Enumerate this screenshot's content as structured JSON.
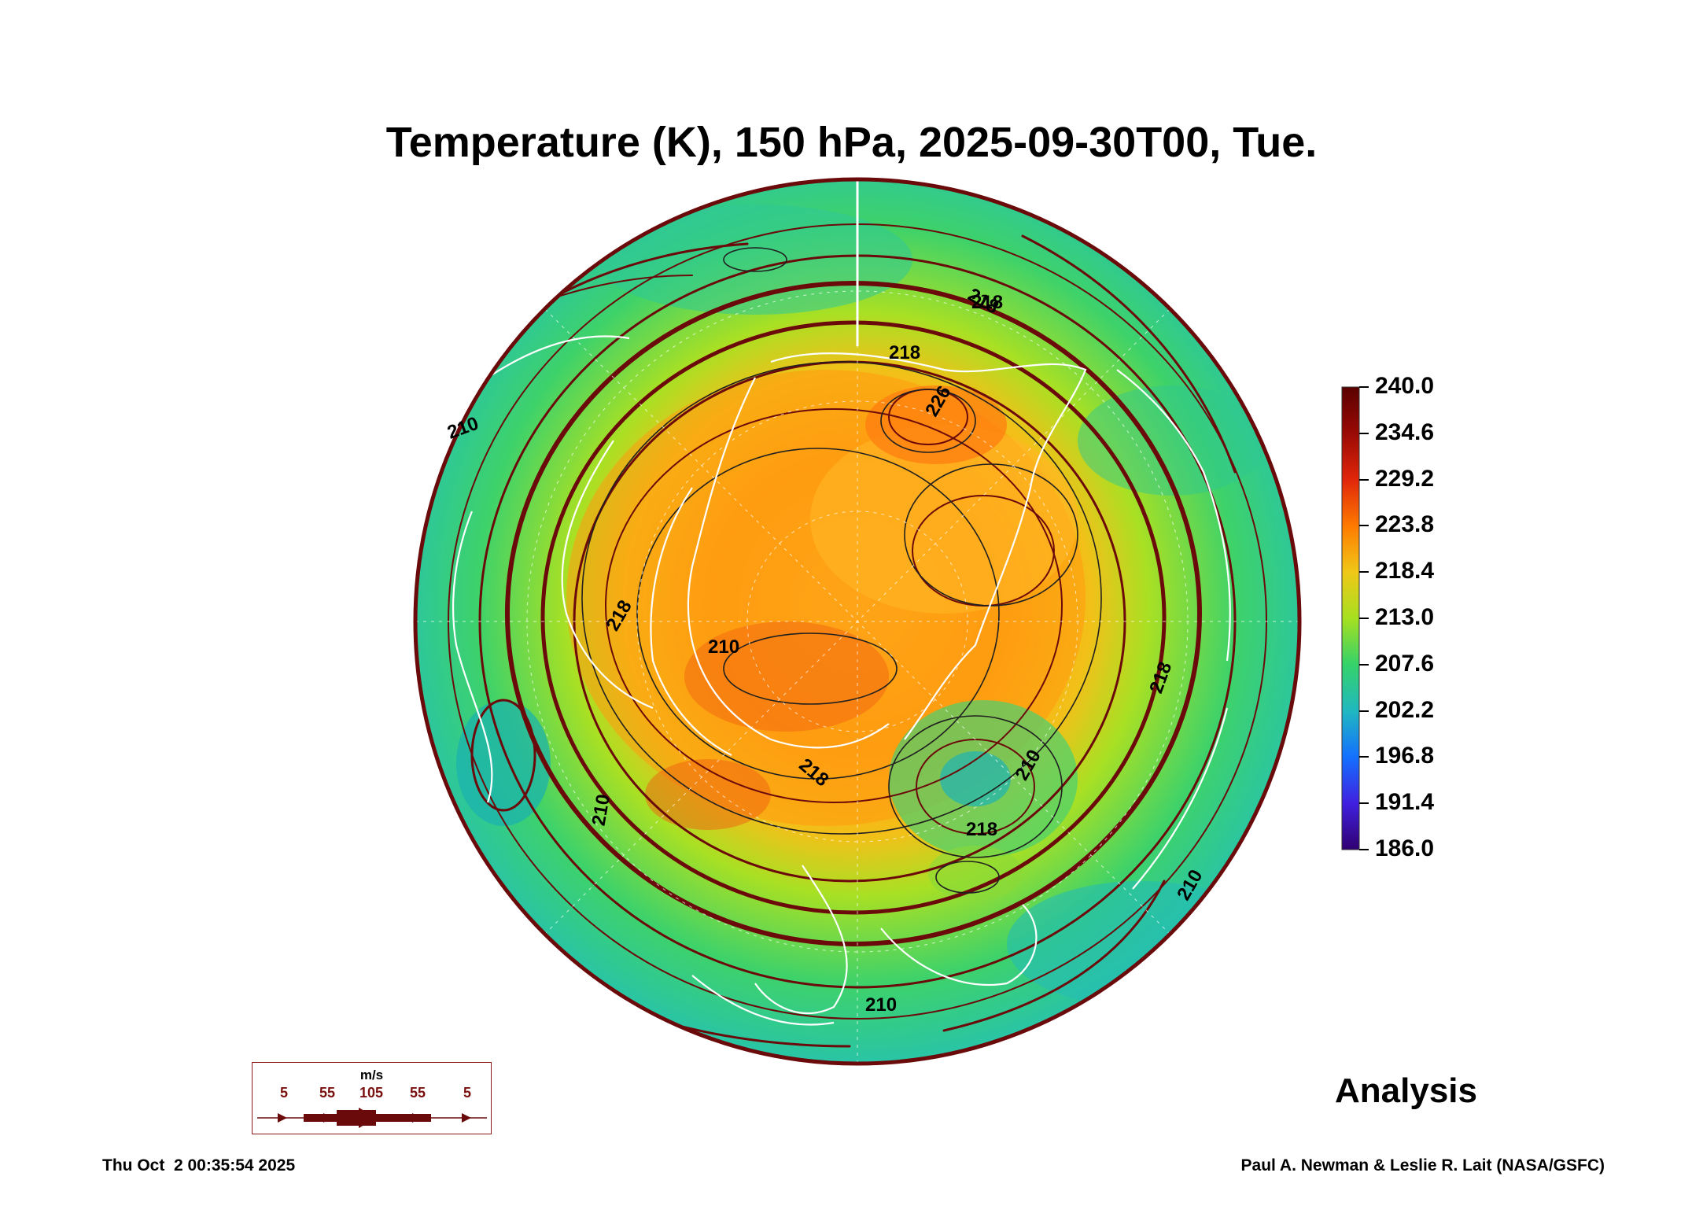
{
  "title": "Temperature (K), 150 hPa, 2025-09-30T00, Tue.",
  "colorbar": {
    "ticks": [
      "240.0",
      "234.6",
      "229.2",
      "223.8",
      "218.4",
      "213.0",
      "207.6",
      "202.2",
      "196.8",
      "191.4",
      "186.0"
    ],
    "colors": [
      "#5a0000",
      "#9a0a05",
      "#e0260a",
      "#ff7a00",
      "#f0c818",
      "#a6e020",
      "#34d26a",
      "#20b8c0",
      "#1470ff",
      "#4020e0",
      "#300070"
    ]
  },
  "contour_labels": [
    "218",
    "218",
    "226",
    "218",
    "210",
    "218",
    "218",
    "210",
    "218",
    "210",
    "210",
    "210",
    "210",
    "218"
  ],
  "wind_legend": {
    "unit": "m/s",
    "labels": [
      "5",
      "55",
      "105",
      "55",
      "5"
    ]
  },
  "product_label": "Analysis",
  "timestamp": "Thu Oct  2 00:35:54 2025",
  "credit": "Paul A. Newman & Leslie R. Lait (NASA/GSFC)",
  "streamline_color": "#6b0a0a"
}
